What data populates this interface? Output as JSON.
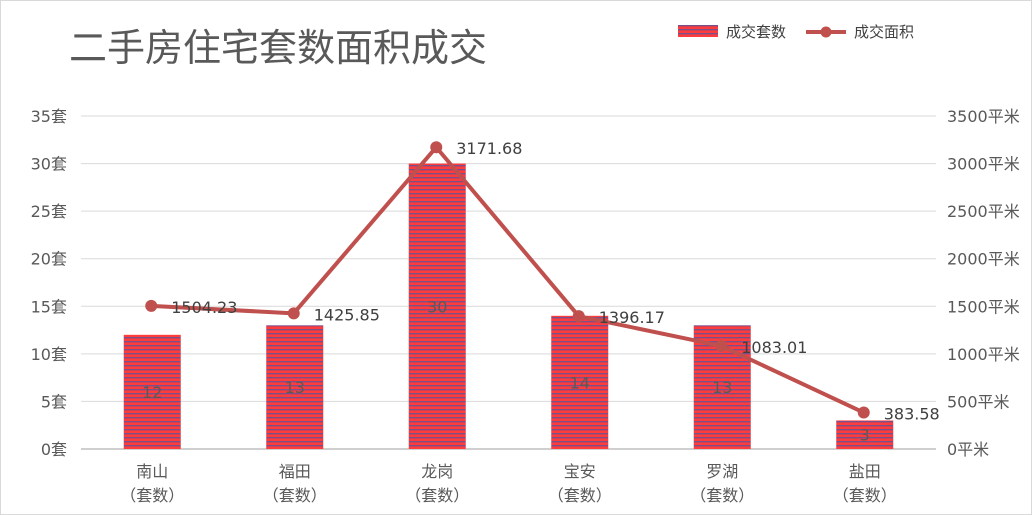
{
  "chart_data": {
    "type": "bar",
    "title": "二手房住宅套数面积成交",
    "categories": [
      [
        "南山",
        "（套数）"
      ],
      [
        "福田",
        "（套数）"
      ],
      [
        "龙岗",
        "（套数）"
      ],
      [
        "宝安",
        "（套数）"
      ],
      [
        "罗湖",
        "（套数）"
      ],
      [
        "盐田",
        "（套数）"
      ]
    ],
    "series": [
      {
        "name": "成交套数",
        "type": "bar",
        "axis": "left",
        "values": [
          12,
          13,
          30,
          14,
          13,
          3
        ],
        "color": "#ff3b3b",
        "stripe_color": "#7a4f8a"
      },
      {
        "name": "成交面积",
        "type": "line",
        "axis": "right",
        "values": [
          1504.23,
          1425.85,
          3171.68,
          1396.17,
          1083.01,
          383.58
        ],
        "color": "#c0504d"
      }
    ],
    "y_left": {
      "min": 0,
      "max": 35,
      "step": 5,
      "unit": "套"
    },
    "y_right": {
      "min": 0,
      "max": 3500,
      "step": 500,
      "unit": "平米"
    },
    "grid": true,
    "legend": "top-right"
  }
}
